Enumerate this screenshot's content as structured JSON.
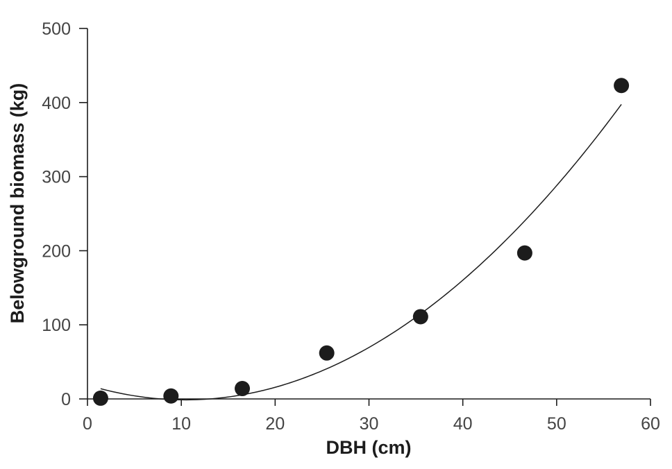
{
  "chart_data": {
    "type": "scatter",
    "title": "",
    "xlabel": "DBH (cm)",
    "ylabel": "Belowground biomass (kg)",
    "xlim": [
      0,
      60
    ],
    "ylim": [
      0,
      500
    ],
    "x_ticks": [
      "0",
      "10",
      "20",
      "30",
      "40",
      "50",
      "60"
    ],
    "y_ticks": [
      "0",
      "100",
      "200",
      "300",
      "400",
      "500"
    ],
    "grid": false,
    "legend": "none",
    "series": [
      {
        "points": [
          {
            "x": 1.4,
            "y": 1
          },
          {
            "x": 8.9,
            "y": 4
          },
          {
            "x": 16.5,
            "y": 14
          },
          {
            "x": 25.5,
            "y": 62
          },
          {
            "x": 35.5,
            "y": 111
          },
          {
            "x": 46.6,
            "y": 197
          },
          {
            "x": 56.9,
            "y": 423
          }
        ],
        "color": "#1c1c1c"
      }
    ],
    "fit_curve": {
      "type": "polynomial",
      "degree": 2,
      "x_range": [
        1.4,
        56.9
      ],
      "color": "#1c1c1c"
    }
  }
}
